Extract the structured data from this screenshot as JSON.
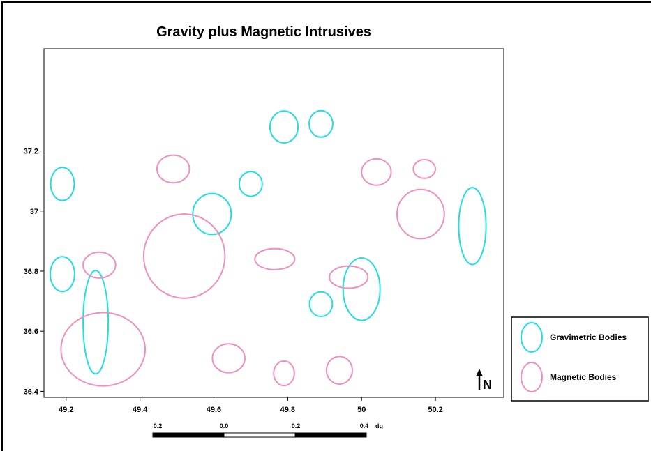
{
  "title": "Gravity plus Magnetic Intrusives",
  "colors": {
    "gravimetric": "#22dde4",
    "magnetic": "#ee8fbd",
    "frame": "#000000"
  },
  "axes": {
    "xlim": [
      49.14,
      50.385
    ],
    "ylim": [
      36.38,
      37.54
    ],
    "xticks": [
      "49.2",
      "49.4",
      "49.6",
      "49.8",
      "50",
      "50.2"
    ],
    "yticks": [
      "36.4",
      "36.6",
      "36.8",
      "37",
      "37.2"
    ]
  },
  "chart_data": {
    "type": "scatter",
    "title": "Gravity plus Magnetic Intrusives",
    "xlabel": "",
    "ylabel": "",
    "xlim": [
      49.14,
      50.385
    ],
    "ylim": [
      36.38,
      37.54
    ],
    "series": [
      {
        "name": "Gravimetric Bodies",
        "bodies": [
          {
            "x": 49.79,
            "y": 37.28,
            "rx": 0.038,
            "ry": 0.053
          },
          {
            "x": 49.89,
            "y": 37.29,
            "rx": 0.032,
            "ry": 0.044
          },
          {
            "x": 49.19,
            "y": 37.09,
            "rx": 0.032,
            "ry": 0.055
          },
          {
            "x": 49.7,
            "y": 37.09,
            "rx": 0.031,
            "ry": 0.041
          },
          {
            "x": 49.595,
            "y": 36.99,
            "rx": 0.052,
            "ry": 0.068
          },
          {
            "x": 50.3,
            "y": 36.95,
            "rx": 0.037,
            "ry": 0.128
          },
          {
            "x": 49.19,
            "y": 36.79,
            "rx": 0.033,
            "ry": 0.058
          },
          {
            "x": 49.28,
            "y": 36.63,
            "rx": 0.034,
            "ry": 0.172
          },
          {
            "x": 50.0,
            "y": 36.74,
            "rx": 0.05,
            "ry": 0.104
          },
          {
            "x": 49.89,
            "y": 36.69,
            "rx": 0.031,
            "ry": 0.041
          }
        ]
      },
      {
        "name": "Magnetic Bodies",
        "bodies": [
          {
            "x": 49.49,
            "y": 37.14,
            "rx": 0.044,
            "ry": 0.046
          },
          {
            "x": 50.04,
            "y": 37.13,
            "rx": 0.04,
            "ry": 0.044
          },
          {
            "x": 50.17,
            "y": 37.14,
            "rx": 0.03,
            "ry": 0.031
          },
          {
            "x": 50.16,
            "y": 36.99,
            "rx": 0.064,
            "ry": 0.082
          },
          {
            "x": 49.52,
            "y": 36.85,
            "rx": 0.11,
            "ry": 0.14
          },
          {
            "x": 49.29,
            "y": 36.82,
            "rx": 0.044,
            "ry": 0.043
          },
          {
            "x": 49.765,
            "y": 36.84,
            "rx": 0.054,
            "ry": 0.035
          },
          {
            "x": 49.965,
            "y": 36.78,
            "rx": 0.052,
            "ry": 0.037
          },
          {
            "x": 49.3,
            "y": 36.54,
            "rx": 0.114,
            "ry": 0.122
          },
          {
            "x": 49.64,
            "y": 36.51,
            "rx": 0.044,
            "ry": 0.048
          },
          {
            "x": 49.79,
            "y": 36.46,
            "rx": 0.028,
            "ry": 0.041
          },
          {
            "x": 49.94,
            "y": 36.47,
            "rx": 0.035,
            "ry": 0.046
          }
        ]
      }
    ],
    "grid": false,
    "legend": "right"
  },
  "legend": {
    "items": [
      {
        "label": "Gravimetric Bodies",
        "color": "#22dde4"
      },
      {
        "label": "Magnetic Bodies",
        "color": "#ee8fbd"
      }
    ]
  },
  "scale_bar": {
    "labels": [
      "0.2",
      "0.0",
      "0.2",
      "0.4"
    ],
    "unit": "dg"
  },
  "north_arrow": {
    "label": "N"
  }
}
